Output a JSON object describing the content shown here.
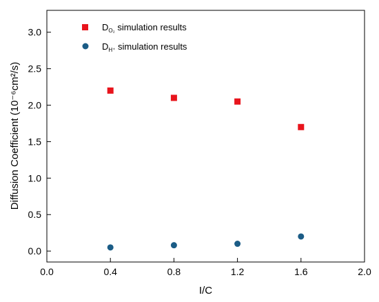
{
  "chart_data": {
    "type": "scatter",
    "xlabel": "I/C",
    "ylabel": "Diffusion Coefficient (10⁻⁶cm²/s)",
    "xlim": [
      0.0,
      2.0
    ],
    "ylim": [
      -0.15,
      3.3
    ],
    "x_ticks": [
      0.0,
      0.4,
      0.8,
      1.2,
      1.6,
      2.0
    ],
    "x_tick_labels": [
      "0.0",
      "0.4",
      "0.8",
      "1.2",
      "1.6",
      "2.0"
    ],
    "y_ticks": [
      0.0,
      0.5,
      1.0,
      1.5,
      2.0,
      2.5,
      3.0
    ],
    "y_tick_labels": [
      "0.0",
      "0.5",
      "1.0",
      "1.5",
      "2.0",
      "2.5",
      "3.0"
    ],
    "grid": false,
    "legend_position": "top-left",
    "series": [
      {
        "name": "D_O₂ simulation results",
        "name_main": "D",
        "name_sub": "O₂",
        "name_rest": " simulation results",
        "marker": "square",
        "color": "#e8141c",
        "x": [
          0.4,
          0.8,
          1.2,
          1.6
        ],
        "y": [
          2.2,
          2.1,
          2.05,
          1.7
        ]
      },
      {
        "name": "D_H⁺ simulation results",
        "name_main": "D",
        "name_sub": "H⁺",
        "name_rest": " simulation results",
        "marker": "circle",
        "color": "#1b5c86",
        "x": [
          0.4,
          0.8,
          1.2,
          1.6
        ],
        "y": [
          0.05,
          0.08,
          0.1,
          0.2
        ]
      }
    ]
  }
}
